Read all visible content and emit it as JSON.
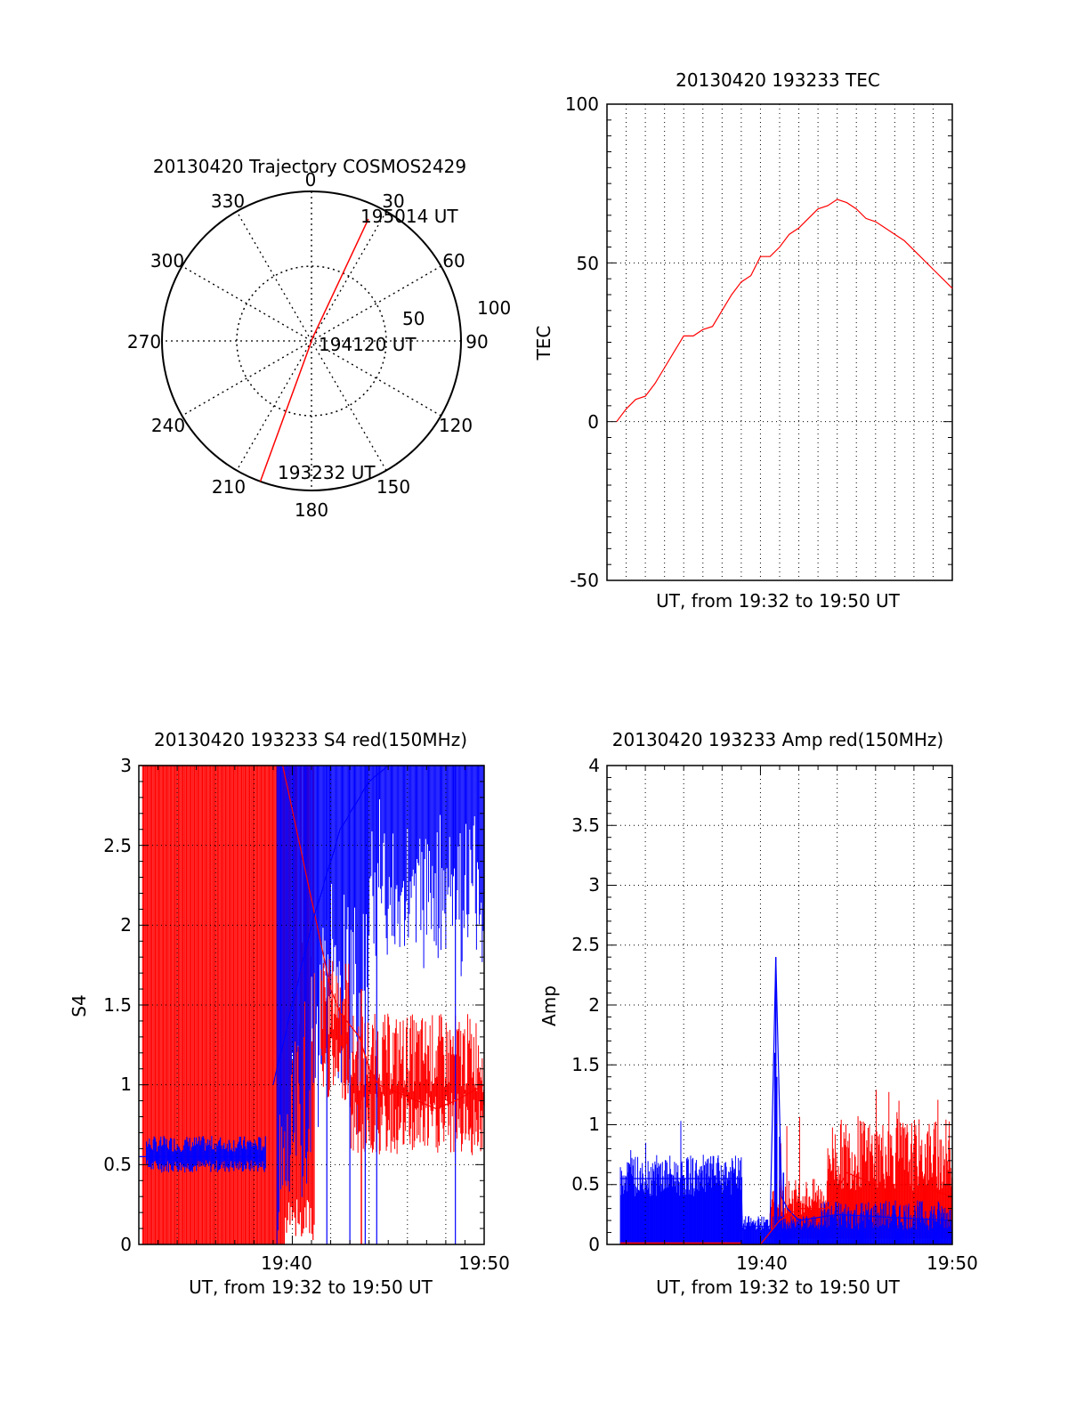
{
  "colors": {
    "red": "#ff0000",
    "blue": "#0000ff",
    "grid": "#000000"
  },
  "chart_data": [
    {
      "type": "polar",
      "title": "20130420 Trajectory COSMOS2429",
      "angle_labels": [
        "0",
        "30",
        "60",
        "90",
        "120",
        "150",
        "180",
        "210",
        "240",
        "270",
        "300",
        "330"
      ],
      "radial_tick_labels": [
        "50",
        "100"
      ],
      "radial_range": [
        0,
        100
      ],
      "trajectory": [
        {
          "azimuth": 200,
          "radius": 100
        },
        {
          "azimuth": 200,
          "radius": 2
        },
        {
          "azimuth": 20,
          "radius": 2
        },
        {
          "azimuth": 25,
          "radius": 90
        }
      ],
      "annotations": [
        {
          "text": "195014 UT",
          "azimuth": 25,
          "radius": 90
        },
        {
          "text": "194120 UT",
          "azimuth": 20,
          "radius": 2
        },
        {
          "text": "193232 UT",
          "azimuth": 200,
          "radius": 100
        }
      ]
    },
    {
      "type": "line",
      "title": "20130420 193233 TEC",
      "xlabel": "UT, from 19:32 to 19:50 UT",
      "ylabel": "TEC",
      "ylim": [
        -50,
        100
      ],
      "yticks": [
        "100",
        "50",
        "0",
        "-50"
      ],
      "xlim_minutes": [
        32,
        50
      ],
      "series": [
        {
          "color": "red",
          "x": [
            32.5,
            33.0,
            33.5,
            34.0,
            34.5,
            35.0,
            35.5,
            36.0,
            36.5,
            37.0,
            37.5,
            38.0,
            38.5,
            39.0,
            39.5,
            40.0,
            40.5,
            41.0,
            41.5,
            42.0,
            42.5,
            43.0,
            43.5,
            44.0,
            44.5,
            45.0,
            45.5,
            46.0,
            46.5,
            47.0,
            47.5,
            48.0,
            48.5,
            49.0,
            49.5,
            50.0
          ],
          "y": [
            0,
            4,
            7,
            8,
            12,
            17,
            22,
            27,
            27,
            29,
            30,
            35,
            40,
            44,
            46,
            52,
            52,
            55,
            59,
            61,
            64,
            67,
            68,
            70,
            69,
            67,
            64,
            63,
            61,
            59,
            57,
            54,
            51,
            48,
            45,
            42
          ]
        }
      ]
    },
    {
      "type": "line",
      "title": "20130420 193233 S4 red(150MHz)",
      "xlabel": "UT, from 19:32 to 19:50 UT",
      "ylabel": "S4",
      "ylim": [
        0,
        3
      ],
      "yticks": [
        "3",
        "2.5",
        "2",
        "1.5",
        "1",
        "0.5",
        "0"
      ],
      "xlim_minutes": [
        32,
        50
      ],
      "xtick_labels": [
        {
          "minute": 40,
          "label": "19:40"
        },
        {
          "minute": 50,
          "label": "19:50"
        }
      ],
      "series": [
        {
          "color": "red",
          "x": [
            32.0,
            39.5,
            42.0,
            42.5,
            43.5,
            44.0,
            44.5,
            45.5,
            46.5,
            47.5,
            48.5,
            50.0
          ],
          "y": [
            3,
            3,
            1.6,
            1.45,
            1.3,
            1.1,
            1.0,
            0.95,
            0.9,
            0.85,
            0.9,
            1.0
          ]
        },
        {
          "color": "blue",
          "x": [
            32.0,
            36.0,
            38.5
          ],
          "y": [
            0.55,
            0.55,
            0.55
          ]
        },
        {
          "color": "blue",
          "x": [
            39.0,
            41.0,
            42.5,
            44.0,
            45.0,
            50.0
          ],
          "y": [
            1.0,
            2.0,
            2.6,
            2.9,
            3.0,
            3.0
          ]
        }
      ]
    },
    {
      "type": "line",
      "title": "20130420 193233 Amp red(150MHz)",
      "xlabel": "UT, from 19:32 to 19:50 UT",
      "ylabel": "Amp",
      "ylim": [
        0,
        4
      ],
      "yticks": [
        "4",
        "3.5",
        "3",
        "2.5",
        "2",
        "1.5",
        "1",
        "0.5",
        "0"
      ],
      "xlim_minutes": [
        32,
        50
      ],
      "xtick_labels": [
        {
          "minute": 40,
          "label": "19:40"
        },
        {
          "minute": 50,
          "label": "19:50"
        }
      ],
      "series": [
        {
          "color": "blue",
          "x": [
            32.7,
            36.0,
            39.0,
            39.05,
            40.5,
            40.8,
            41.1,
            41.4,
            42.0,
            44.0,
            50.0
          ],
          "y": [
            0.55,
            0.55,
            0.55,
            0.15,
            0.15,
            2.4,
            0.4,
            0.3,
            0.2,
            0.25,
            0.2
          ]
        },
        {
          "color": "red",
          "x": [
            32.7,
            40.0,
            41.0,
            42.0,
            43.5,
            44.5,
            46.0,
            48.0,
            50.0
          ],
          "y": [
            0.0,
            0.0,
            0.2,
            0.3,
            0.3,
            0.6,
            0.5,
            0.5,
            0.4
          ]
        }
      ]
    }
  ]
}
